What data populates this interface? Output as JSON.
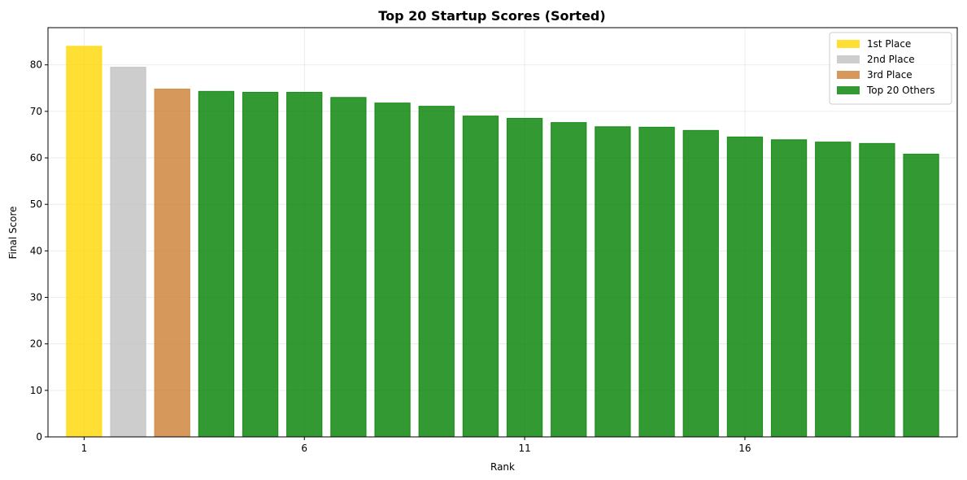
{
  "chart_data": {
    "type": "bar",
    "title": "Top 20 Startup Scores (Sorted)",
    "xlabel": "Rank",
    "ylabel": "Final Score",
    "xlim": [
      0.18,
      20.82
    ],
    "ylim": [
      0,
      88
    ],
    "xticks": [
      1,
      6,
      11,
      16
    ],
    "yticks": [
      0,
      10,
      20,
      30,
      40,
      50,
      60,
      70,
      80
    ],
    "grid": true,
    "legend_position": "top-right",
    "ranks": [
      1,
      2,
      3,
      4,
      5,
      6,
      7,
      8,
      9,
      10,
      11,
      12,
      13,
      14,
      15,
      16,
      17,
      18,
      19,
      20
    ],
    "values": [
      84.0,
      79.5,
      74.8,
      74.3,
      74.1,
      74.1,
      73.0,
      71.8,
      71.1,
      69.0,
      68.5,
      67.6,
      66.7,
      66.6,
      65.9,
      64.5,
      63.9,
      63.4,
      63.1,
      60.8
    ],
    "groups": [
      "first",
      "second",
      "third",
      "others",
      "others",
      "others",
      "others",
      "others",
      "others",
      "others",
      "others",
      "others",
      "others",
      "others",
      "others",
      "others",
      "others",
      "others",
      "others",
      "others"
    ],
    "series": [
      {
        "key": "first",
        "name": "1st Place",
        "color": "#FFD700"
      },
      {
        "key": "second",
        "name": "2nd Place",
        "color": "#C0C0C0"
      },
      {
        "key": "third",
        "name": "3rd Place",
        "color": "#CD7F32"
      },
      {
        "key": "others",
        "name": "Top 20 Others",
        "color": "#008000"
      }
    ]
  }
}
